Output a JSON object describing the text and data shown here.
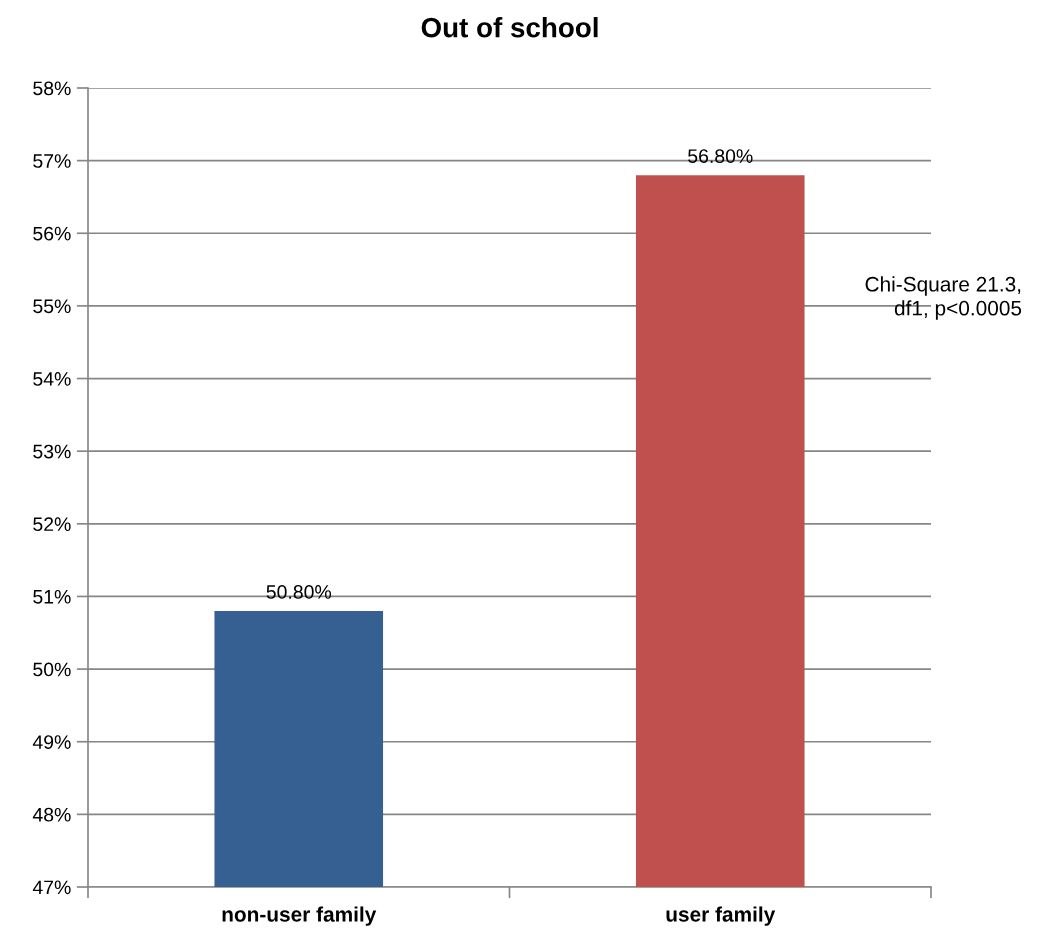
{
  "chart_data": {
    "type": "bar",
    "title": "Out of school",
    "categories": [
      "non-user family",
      "user family"
    ],
    "values": [
      50.8,
      56.8
    ],
    "colors": [
      "#376092",
      "#c0504d"
    ],
    "value_labels": [
      "50.80%",
      "56.80%"
    ],
    "ylim": [
      47,
      58
    ],
    "yticks": [
      {
        "value": 47,
        "label": "47%"
      },
      {
        "value": 48,
        "label": "48%"
      },
      {
        "value": 49,
        "label": "49%"
      },
      {
        "value": 50,
        "label": "50%"
      },
      {
        "value": 51,
        "label": "51%"
      },
      {
        "value": 52,
        "label": "52%"
      },
      {
        "value": 53,
        "label": "53%"
      },
      {
        "value": 54,
        "label": "54%"
      },
      {
        "value": 55,
        "label": "55%"
      },
      {
        "value": 56,
        "label": "56%"
      },
      {
        "value": 57,
        "label": "57%"
      },
      {
        "value": 58,
        "label": "58%"
      }
    ],
    "grid": "y",
    "annotations": [
      "Chi-Square 21.3,\ndf1, p<0.0005"
    ]
  }
}
